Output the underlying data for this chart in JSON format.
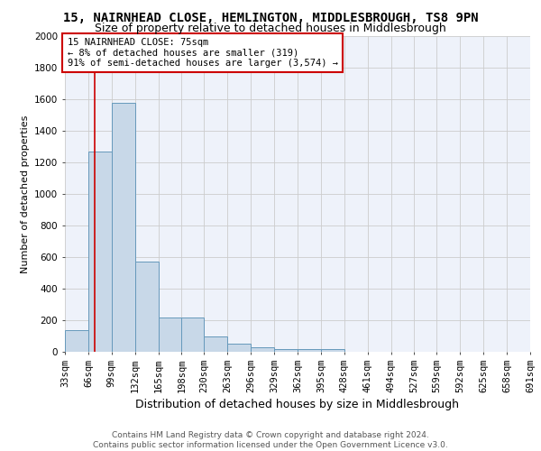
{
  "title": "15, NAIRNHEAD CLOSE, HEMLINGTON, MIDDLESBROUGH, TS8 9PN",
  "subtitle": "Size of property relative to detached houses in Middlesbrough",
  "xlabel": "Distribution of detached houses by size in Middlesbrough",
  "ylabel": "Number of detached properties",
  "bar_color": "#c8d8e8",
  "bar_edge_color": "#6699bb",
  "grid_color": "#cccccc",
  "background_color": "#eef2fa",
  "annotation_line_color": "#cc0000",
  "annotation_box_color": "#cc0000",
  "annotation_text": "15 NAIRNHEAD CLOSE: 75sqm\n← 8% of detached houses are smaller (319)\n91% of semi-detached houses are larger (3,574) →",
  "property_size": 75,
  "bin_edges": [
    33,
    66,
    99,
    132,
    165,
    198,
    230,
    263,
    296,
    329,
    362,
    395,
    428,
    461,
    494,
    527,
    559,
    592,
    625,
    658,
    691
  ],
  "bin_counts": [
    140,
    1270,
    1580,
    570,
    220,
    220,
    95,
    50,
    30,
    20,
    15,
    15,
    0,
    0,
    0,
    0,
    0,
    0,
    0,
    0
  ],
  "ylim": [
    0,
    2000
  ],
  "yticks": [
    0,
    200,
    400,
    600,
    800,
    1000,
    1200,
    1400,
    1600,
    1800,
    2000
  ],
  "footer_text": "Contains HM Land Registry data © Crown copyright and database right 2024.\nContains public sector information licensed under the Open Government Licence v3.0.",
  "title_fontsize": 10,
  "subtitle_fontsize": 9,
  "xlabel_fontsize": 9,
  "ylabel_fontsize": 8,
  "tick_fontsize": 7.5,
  "annotation_fontsize": 7.5,
  "footer_fontsize": 6.5
}
